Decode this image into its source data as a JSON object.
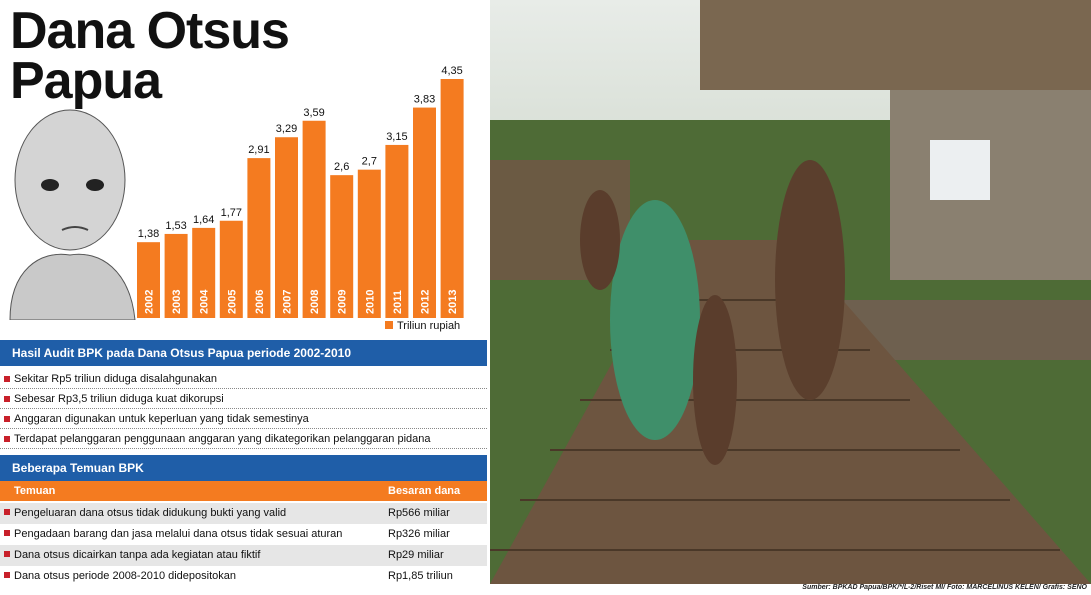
{
  "title": "Dana Otsus Papua",
  "chart_data": {
    "type": "bar",
    "categories": [
      "2002",
      "2003",
      "2004",
      "2005",
      "2006",
      "2007",
      "2008",
      "2009",
      "2010",
      "2011",
      "2012",
      "2013"
    ],
    "values": [
      1.38,
      1.53,
      1.64,
      1.77,
      2.91,
      3.29,
      3.59,
      2.6,
      2.7,
      3.15,
      3.83,
      4.35
    ],
    "value_labels": [
      "1,38",
      "1,53",
      "1,64",
      "1,77",
      "2,91",
      "3,29",
      "3,59",
      "2,6",
      "2,7",
      "3,15",
      "3,83",
      "4,35"
    ],
    "color": "#f47b20",
    "legend": "Triliun rupiah"
  },
  "audit": {
    "title": "Hasil Audit BPK pada Dana Otsus Papua periode 2002-2010",
    "items": [
      "Sekitar Rp5 triliun diduga disalahgunakan",
      "Sebesar Rp3,5 triliun diduga kuat dikorupsi",
      "Anggaran digunakan untuk keperluan yang tidak semestinya",
      "Terdapat pelanggaran penggunaan anggaran yang dikategorikan pelanggaran pidana"
    ]
  },
  "findings": {
    "title": "Beberapa Temuan BPK",
    "table": {
      "header": [
        "Temuan",
        "Besaran dana"
      ],
      "rows": [
        [
          "Pengeluaran dana otsus tidak didukung bukti yang valid",
          "Rp566 miliar"
        ],
        [
          "Pengadaan barang dan jasa melalui dana otsus tidak sesuai aturan",
          "Rp326 miliar"
        ],
        [
          "Dana otsus dicairkan tanpa ada kegiatan atau fiktif",
          "Rp29 miliar"
        ],
        [
          "Dana otsus periode 2008-2010 didepositokan",
          "Rp1,85 triliun"
        ]
      ]
    }
  },
  "source": "Sumber: BPKAD Papua/BPK/*/L-2/Riset MI/ Foto: MARCELINUS KELEN/ Grafis: SENO"
}
